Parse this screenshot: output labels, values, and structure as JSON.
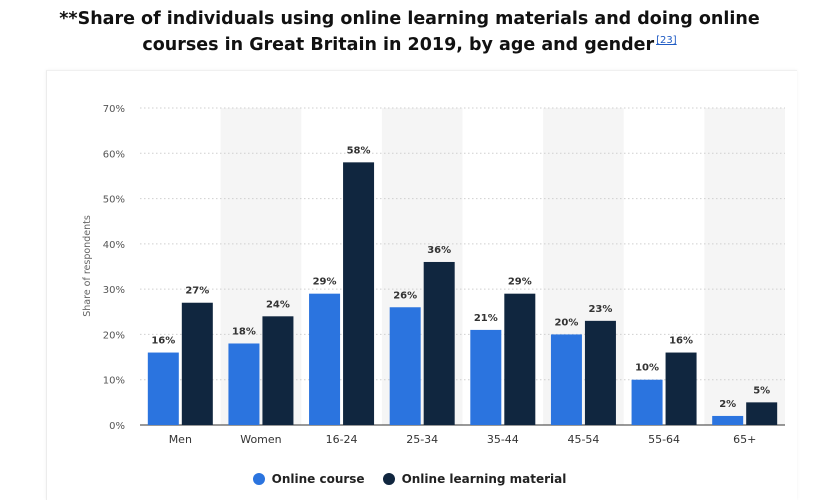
{
  "title": {
    "line1": "**Share of individuals using online learning materials and doing online",
    "line2": "courses in Great Britain in 2019, by age and gender",
    "ref": "[23]"
  },
  "legend": {
    "items": [
      {
        "label": "Online course",
        "color": "#2b74df"
      },
      {
        "label": "Online learning material",
        "color": "#10263f"
      }
    ]
  },
  "chart_data": {
    "type": "bar",
    "ylabel": "Share of respondents",
    "xlabel": "",
    "ylim": [
      0,
      70
    ],
    "yticks": [
      "0%",
      "10%",
      "20%",
      "30%",
      "40%",
      "50%",
      "60%",
      "70%"
    ],
    "categories": [
      "Men",
      "Women",
      "16-24",
      "25-34",
      "35-44",
      "45-54",
      "55-64",
      "65+"
    ],
    "series": [
      {
        "name": "Online course",
        "color": "#2b74df",
        "values": [
          16,
          18,
          29,
          26,
          21,
          20,
          10,
          2
        ]
      },
      {
        "name": "Online learning material",
        "color": "#10263f",
        "values": [
          27,
          24,
          58,
          36,
          29,
          23,
          16,
          5
        ]
      }
    ],
    "grid": true,
    "legend_position": "bottom"
  }
}
